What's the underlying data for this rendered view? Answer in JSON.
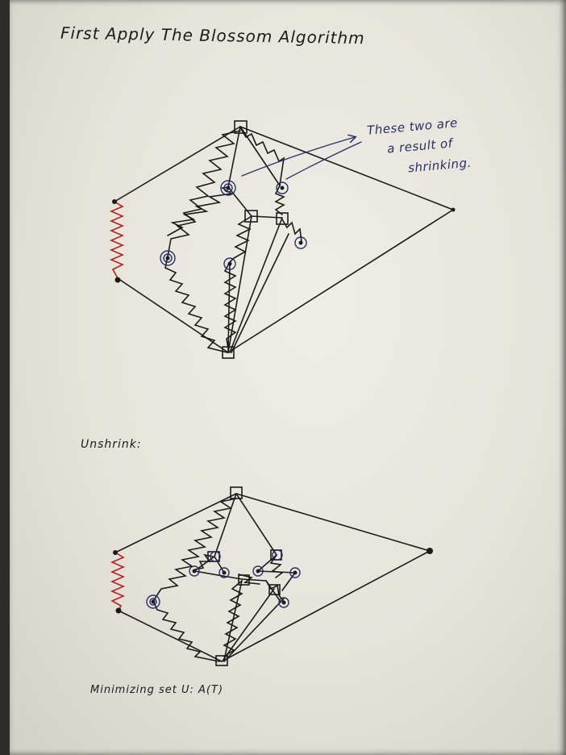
{
  "texts": {
    "title": "First Apply The Blossom Algorithm",
    "note_line1": "These two are",
    "note_line2": "a result of",
    "note_line3": "shrinking.",
    "unshrink_label": "Unshrink:",
    "min_set_label": "Minimizing set U: A(T)"
  },
  "colors": {
    "paper": "#ebe8e0",
    "ink": "#1b1b1b",
    "blue_ink": "#2a2f66",
    "red_ink": "#b3231f"
  }
}
